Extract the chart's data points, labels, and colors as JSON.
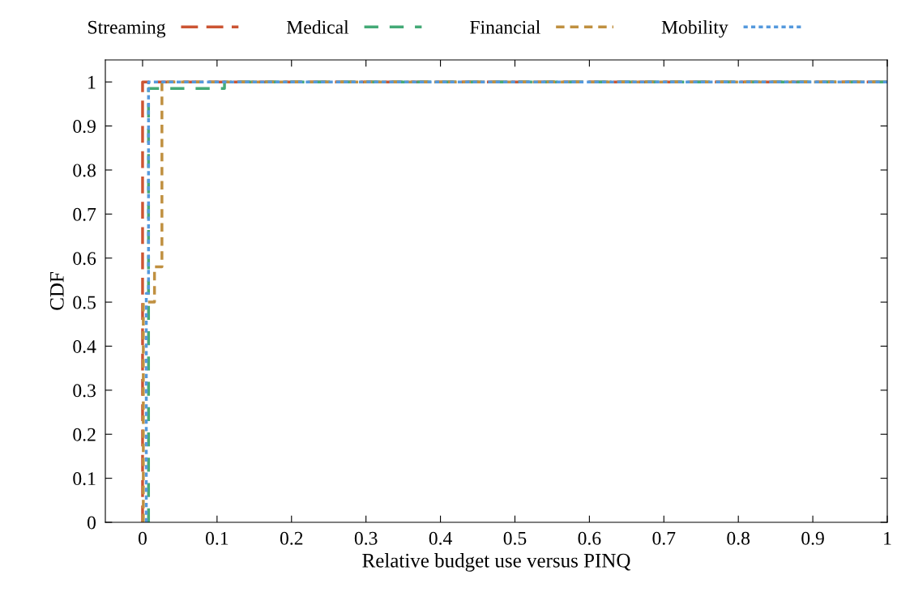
{
  "chart_data": {
    "type": "step",
    "xlabel": "Relative budget use versus PINQ",
    "ylabel": "CDF",
    "xlim": [
      -0.05,
      1
    ],
    "ylim": [
      0,
      1.05
    ],
    "xticks": [
      0,
      0.1,
      0.2,
      0.3,
      0.4,
      0.5,
      0.6,
      0.7,
      0.8,
      0.9,
      1
    ],
    "yticks": [
      0,
      0.1,
      0.2,
      0.3,
      0.4,
      0.5,
      0.6,
      0.7,
      0.8,
      0.9,
      1
    ],
    "grid": false,
    "legend": "top",
    "marker": "none",
    "series": [
      {
        "name": "Streaming",
        "color": "#cc5533",
        "line_style": "dashed",
        "x": [
          0,
          0,
          1
        ],
        "values": [
          0,
          1,
          1
        ]
      },
      {
        "name": "Medical",
        "color": "#44aa77",
        "line_style": "dashed",
        "x": [
          0.008,
          0.008,
          0.11,
          0.11,
          1
        ],
        "values": [
          0,
          0.985,
          0.985,
          1,
          1
        ]
      },
      {
        "name": "Financial",
        "color": "#c09040",
        "line_style": "dashed",
        "x": [
          0.001,
          0.001,
          0.016,
          0.016,
          0.026,
          0.026,
          1
        ],
        "values": [
          0,
          0.5,
          0.5,
          0.58,
          0.58,
          1,
          1
        ]
      },
      {
        "name": "Mobility",
        "color": "#5599dd",
        "line_style": "dotted",
        "x": [
          0.005,
          0.005,
          0.008,
          0.008,
          1
        ],
        "values": [
          0,
          0.52,
          0.52,
          1,
          1
        ]
      }
    ]
  }
}
